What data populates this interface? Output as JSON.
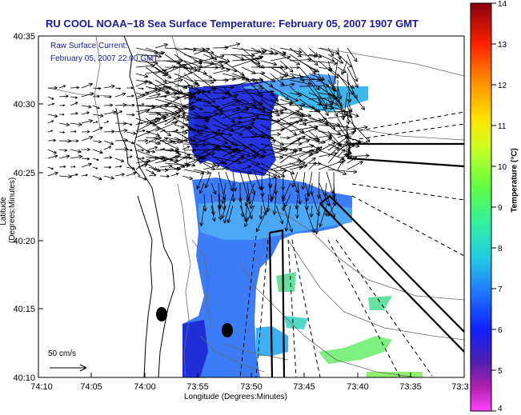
{
  "title": "RU COOL  NOAA−18  Sea Surface Temperature:  February 05, 2007 1907 GMT",
  "raw_label_1": "Raw Surface Current:",
  "raw_label_2": "February 05, 2007 22:00 GMT",
  "ylabel": "Latitude (Degrees:Minutes)",
  "xlabel": "Longitude (Degrees:Minutes)",
  "colorbar_title": "Temperature (°C)",
  "scale_label": "50 cm/s",
  "y_ticks": [
    "40:35",
    "40:30",
    "40:25",
    "40:20",
    "40:15",
    "40:10"
  ],
  "x_ticks": [
    "74:10",
    "74:05",
    "74:00",
    "73:55",
    "73:50",
    "73:45",
    "73:40",
    "73:35",
    "73:3"
  ],
  "colorbar_ticks": [
    "14",
    "13",
    "12",
    "11",
    "10",
    "9",
    "8",
    "7",
    "6",
    "5",
    "4"
  ],
  "colors": {
    "title": "#1a1aa0",
    "sst_cold": "#2a3fe0",
    "sst_mid": "#3ea0ff",
    "sst_warm": "#7ff07f"
  }
}
